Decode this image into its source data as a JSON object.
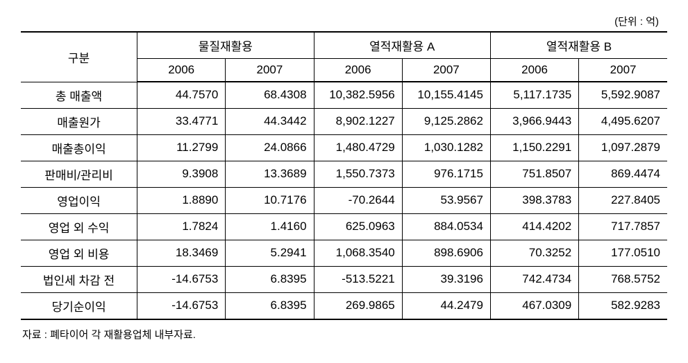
{
  "unit_label": "(단위 : 억)",
  "header": {
    "category": "구분",
    "groups": [
      "물질재활용",
      "열적재활용 A",
      "열적재활용 B"
    ],
    "years": [
      "2006",
      "2007",
      "2006",
      "2007",
      "2006",
      "2007"
    ]
  },
  "rows": [
    {
      "label": "총 매출액",
      "values": [
        "44.7570",
        "68.4308",
        "10,382.5956",
        "10,155.4145",
        "5,117.1735",
        "5,592.9087"
      ]
    },
    {
      "label": "매출원가",
      "values": [
        "33.4771",
        "44.3442",
        "8,902.1227",
        "9,125.2862",
        "3,966.9443",
        "4,495.6207"
      ]
    },
    {
      "label": "매출총이익",
      "values": [
        "11.2799",
        "24.0866",
        "1,480.4729",
        "1,030.1282",
        "1,150.2291",
        "1,097.2879"
      ]
    },
    {
      "label": "판매비/관리비",
      "values": [
        "9.3908",
        "13.3689",
        "1,550.7373",
        "976.1715",
        "751.8507",
        "869.4474"
      ]
    },
    {
      "label": "영업이익",
      "values": [
        "1.8890",
        "10.7176",
        "-70.2644",
        "53.9567",
        "398.3783",
        "227.8405"
      ]
    },
    {
      "label": "영업 외 수익",
      "values": [
        "1.7824",
        "1.4160",
        "625.0963",
        "884.0534",
        "414.4202",
        "717.7857"
      ]
    },
    {
      "label": "영업 외 비용",
      "values": [
        "18.3469",
        "5.2941",
        "1,068.3540",
        "898.6906",
        "70.3252",
        "177.0510"
      ]
    },
    {
      "label": "법인세 차감 전",
      "values": [
        "-14.6753",
        "6.8395",
        "-513.5221",
        "39.3196",
        "742.4734",
        "768.5752"
      ]
    },
    {
      "label": "당기순이익",
      "values": [
        "-14.6753",
        "6.8395",
        "269.9865",
        "44.2479",
        "467.0309",
        "582.9283"
      ]
    }
  ],
  "source": "자료 : 폐타이어 각 재활용업체 내부자료.",
  "styling": {
    "background_color": "#ffffff",
    "border_color": "#000000",
    "font_family": "Malgun Gothic",
    "header_fontsize": 17,
    "body_fontsize": 17,
    "note_fontsize": 15,
    "top_border_width": 2,
    "header_bottom_border_width": 2,
    "bottom_border_width": 2,
    "cell_border_width": 1
  }
}
